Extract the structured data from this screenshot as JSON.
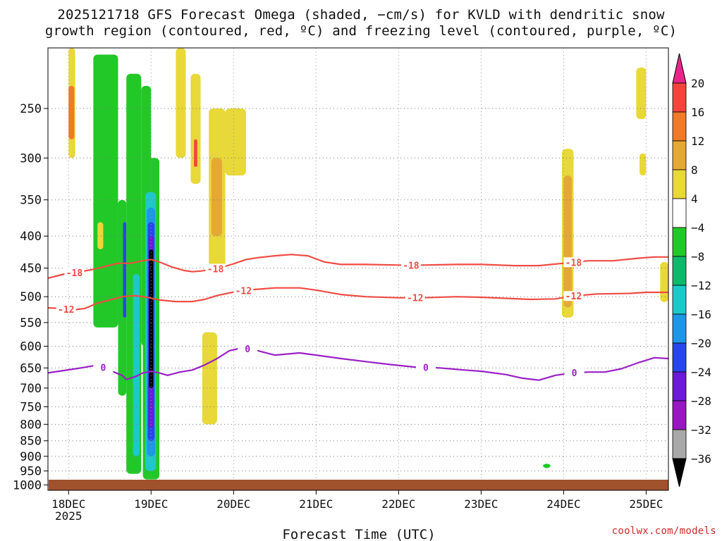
{
  "chart_data": {
    "type": "heatmap",
    "title_lines": [
      "2025121718 GFS Forecast Omega (shaded, −cm/s) for KVLD with dendritic snow",
      "growth region (contoured, red, ºC) and freezing level (contoured, purple, ºC)"
    ],
    "xlabel": "Forecast Time (UTC)",
    "x_ticks": [
      "18DEC",
      "19DEC",
      "20DEC",
      "21DEC",
      "22DEC",
      "23DEC",
      "24DEC",
      "25DEC"
    ],
    "x_tick_day": [
      18,
      19,
      20,
      21,
      22,
      23,
      24,
      25
    ],
    "x_tick_year": "2025",
    "xlim_day": [
      17.75,
      25.27
    ],
    "y_ticks": [
      250,
      300,
      350,
      400,
      450,
      500,
      550,
      600,
      650,
      700,
      750,
      800,
      850,
      900,
      950,
      1000
    ],
    "y_ticks_log_scale": true,
    "ylim_hpa": [
      200,
      1020
    ],
    "grid": true,
    "colorbar": {
      "labels": [
        "20",
        "16",
        "12",
        "8",
        "4",
        "−4",
        "−8",
        "−12",
        "−16",
        "−20",
        "−24",
        "−28",
        "−32",
        "−36"
      ],
      "colors": [
        "#e8268a",
        "#f2463c",
        "#f07a28",
        "#e6a834",
        "#e8d838",
        "#ffffff",
        "#22c828",
        "#12b86a",
        "#1ec8c8",
        "#1e96e8",
        "#2846e8",
        "#6a1ad2",
        "#9a16c2",
        "#a8a8a8",
        "#000000"
      ]
    },
    "contours": [
      {
        "level": "-18",
        "color": "#f04c44",
        "labels": [
          "-18",
          "-18",
          "-18",
          "-18"
        ],
        "label_days": [
          18.07,
          19.78,
          22.15,
          24.12
        ],
        "points": [
          [
            17.75,
            467
          ],
          [
            17.95,
            460
          ],
          [
            18.15,
            456
          ],
          [
            18.3,
            452
          ],
          [
            18.45,
            447
          ],
          [
            18.6,
            442
          ],
          [
            18.75,
            442
          ],
          [
            18.9,
            438
          ],
          [
            19.0,
            436
          ],
          [
            19.1,
            440
          ],
          [
            19.25,
            448
          ],
          [
            19.4,
            454
          ],
          [
            19.5,
            456
          ],
          [
            19.6,
            455
          ],
          [
            19.75,
            452
          ],
          [
            19.9,
            447
          ],
          [
            20.0,
            443
          ],
          [
            20.15,
            436
          ],
          [
            20.3,
            433
          ],
          [
            20.5,
            430
          ],
          [
            20.7,
            428
          ],
          [
            20.9,
            430
          ],
          [
            21.1,
            440
          ],
          [
            21.3,
            444
          ],
          [
            21.6,
            444
          ],
          [
            22.0,
            445
          ],
          [
            22.3,
            445
          ],
          [
            22.7,
            444
          ],
          [
            23.0,
            444
          ],
          [
            23.4,
            446
          ],
          [
            23.7,
            446
          ],
          [
            24.0,
            442
          ],
          [
            24.3,
            438
          ],
          [
            24.6,
            438
          ],
          [
            24.9,
            434
          ],
          [
            25.1,
            432
          ],
          [
            25.27,
            432
          ]
        ]
      },
      {
        "level": "-12",
        "color": "#f04c44",
        "labels": [
          "-12",
          "-12",
          "-12",
          "-12"
        ],
        "label_days": [
          17.97,
          20.12,
          22.2,
          24.12
        ],
        "points": [
          [
            17.75,
            521
          ],
          [
            17.9,
            522
          ],
          [
            18.05,
            525
          ],
          [
            18.2,
            522
          ],
          [
            18.35,
            512
          ],
          [
            18.5,
            506
          ],
          [
            18.65,
            500
          ],
          [
            18.8,
            498
          ],
          [
            18.95,
            501
          ],
          [
            19.1,
            506
          ],
          [
            19.3,
            509
          ],
          [
            19.5,
            509
          ],
          [
            19.65,
            505
          ],
          [
            19.8,
            498
          ],
          [
            19.95,
            493
          ],
          [
            20.1,
            489
          ],
          [
            20.25,
            487
          ],
          [
            20.5,
            484
          ],
          [
            20.8,
            484
          ],
          [
            21.0,
            488
          ],
          [
            21.3,
            496
          ],
          [
            21.6,
            500
          ],
          [
            22.0,
            502
          ],
          [
            22.3,
            502
          ],
          [
            22.7,
            500
          ],
          [
            23.0,
            501
          ],
          [
            23.3,
            503
          ],
          [
            23.6,
            505
          ],
          [
            23.9,
            504
          ],
          [
            24.1,
            499
          ],
          [
            24.4,
            495
          ],
          [
            24.8,
            494
          ],
          [
            25.0,
            492
          ],
          [
            25.27,
            492
          ]
        ]
      },
      {
        "level": "0",
        "color": "#9a20c6",
        "labels": [
          "0",
          "0",
          "0",
          "0"
        ],
        "label_days": [
          18.42,
          20.17,
          22.33,
          24.13
        ],
        "points": [
          [
            17.75,
            662
          ],
          [
            17.95,
            656
          ],
          [
            18.15,
            650
          ],
          [
            18.3,
            645
          ],
          [
            18.45,
            650
          ],
          [
            18.55,
            660
          ],
          [
            18.65,
            668
          ],
          [
            18.7,
            678
          ],
          [
            18.8,
            672
          ],
          [
            18.9,
            662
          ],
          [
            19.0,
            658
          ],
          [
            19.1,
            662
          ],
          [
            19.2,
            668
          ],
          [
            19.35,
            660
          ],
          [
            19.5,
            655
          ],
          [
            19.65,
            643
          ],
          [
            19.8,
            628
          ],
          [
            19.95,
            610
          ],
          [
            20.1,
            604
          ],
          [
            20.25,
            608
          ],
          [
            20.5,
            620
          ],
          [
            20.8,
            615
          ],
          [
            21.0,
            620
          ],
          [
            21.3,
            628
          ],
          [
            21.6,
            635
          ],
          [
            21.9,
            642
          ],
          [
            22.2,
            648
          ],
          [
            22.5,
            650
          ],
          [
            22.8,
            655
          ],
          [
            23.0,
            658
          ],
          [
            23.3,
            666
          ],
          [
            23.5,
            675
          ],
          [
            23.7,
            680
          ],
          [
            23.9,
            668
          ],
          [
            24.1,
            662
          ],
          [
            24.3,
            660
          ],
          [
            24.5,
            660
          ],
          [
            24.7,
            652
          ],
          [
            24.9,
            638
          ],
          [
            25.1,
            626
          ],
          [
            25.27,
            628
          ]
        ]
      }
    ],
    "shading_regions": [
      {
        "day": [
          18.0,
          18.08
        ],
        "p": [
          200,
          300
        ],
        "color": "#e8d838"
      },
      {
        "day": [
          18.0,
          18.07
        ],
        "p": [
          230,
          280
        ],
        "color": "#f07a28"
      },
      {
        "day": [
          18.3,
          18.6
        ],
        "p": [
          205,
          560
        ],
        "color": "#22c828"
      },
      {
        "day": [
          18.35,
          18.42
        ],
        "p": [
          380,
          420
        ],
        "color": "#e8d838"
      },
      {
        "day": [
          18.6,
          18.7
        ],
        "p": [
          350,
          720
        ],
        "color": "#22c828"
      },
      {
        "day": [
          18.66,
          18.7
        ],
        "p": [
          380,
          540
        ],
        "color": "#2846e8"
      },
      {
        "day": [
          18.7,
          18.88
        ],
        "p": [
          220,
          960
        ],
        "color": "#22c828"
      },
      {
        "day": [
          18.78,
          18.86
        ],
        "p": [
          460,
          900
        ],
        "color": "#1ec8c8"
      },
      {
        "day": [
          18.88,
          19.0
        ],
        "p": [
          230,
          600
        ],
        "color": "#22c828"
      },
      {
        "day": [
          18.9,
          19.1
        ],
        "p": [
          300,
          980
        ],
        "color": "#22c828"
      },
      {
        "day": [
          18.93,
          19.06
        ],
        "p": [
          340,
          950
        ],
        "color": "#1ec8c8"
      },
      {
        "day": [
          18.95,
          19.05
        ],
        "p": [
          360,
          900
        ],
        "color": "#1e96e8"
      },
      {
        "day": [
          18.96,
          19.04
        ],
        "p": [
          380,
          850
        ],
        "color": "#2846e8"
      },
      {
        "day": [
          18.97,
          19.03
        ],
        "p": [
          400,
          810
        ],
        "color": "#6a1ad2"
      },
      {
        "day": [
          18.975,
          19.025
        ],
        "p": [
          420,
          700
        ],
        "color": "#000000"
      },
      {
        "day": [
          19.3,
          19.42
        ],
        "p": [
          200,
          300
        ],
        "color": "#e8d838"
      },
      {
        "day": [
          19.48,
          19.6
        ],
        "p": [
          220,
          330
        ],
        "color": "#e8d838"
      },
      {
        "day": [
          19.52,
          19.56
        ],
        "p": [
          280,
          310
        ],
        "color": "#f2463c"
      },
      {
        "day": [
          19.7,
          19.9
        ],
        "p": [
          250,
          450
        ],
        "color": "#e8d838"
      },
      {
        "day": [
          19.73,
          19.86
        ],
        "p": [
          300,
          400
        ],
        "color": "#e6a834"
      },
      {
        "day": [
          19.9,
          20.15
        ],
        "p": [
          250,
          320
        ],
        "color": "#e8d838"
      },
      {
        "day": [
          19.62,
          19.8
        ],
        "p": [
          570,
          800
        ],
        "color": "#e8d838"
      },
      {
        "day": [
          23.98,
          24.12
        ],
        "p": [
          290,
          540
        ],
        "color": "#e8d838"
      },
      {
        "day": [
          24.0,
          24.1
        ],
        "p": [
          320,
          520
        ],
        "color": "#e6a834"
      },
      {
        "day": [
          24.88,
          25.0
        ],
        "p": [
          215,
          260
        ],
        "color": "#e8d838"
      },
      {
        "day": [
          24.92,
          25.0
        ],
        "p": [
          295,
          320
        ],
        "color": "#e8d838"
      },
      {
        "day": [
          25.17,
          25.27
        ],
        "p": [
          440,
          510
        ],
        "color": "#e8d838"
      },
      {
        "day": [
          23.75,
          23.84
        ],
        "p": [
          925,
          940
        ],
        "color": "#22c828"
      }
    ],
    "terrain_color": "#a0522d"
  },
  "credit": "coolwx.com/models"
}
